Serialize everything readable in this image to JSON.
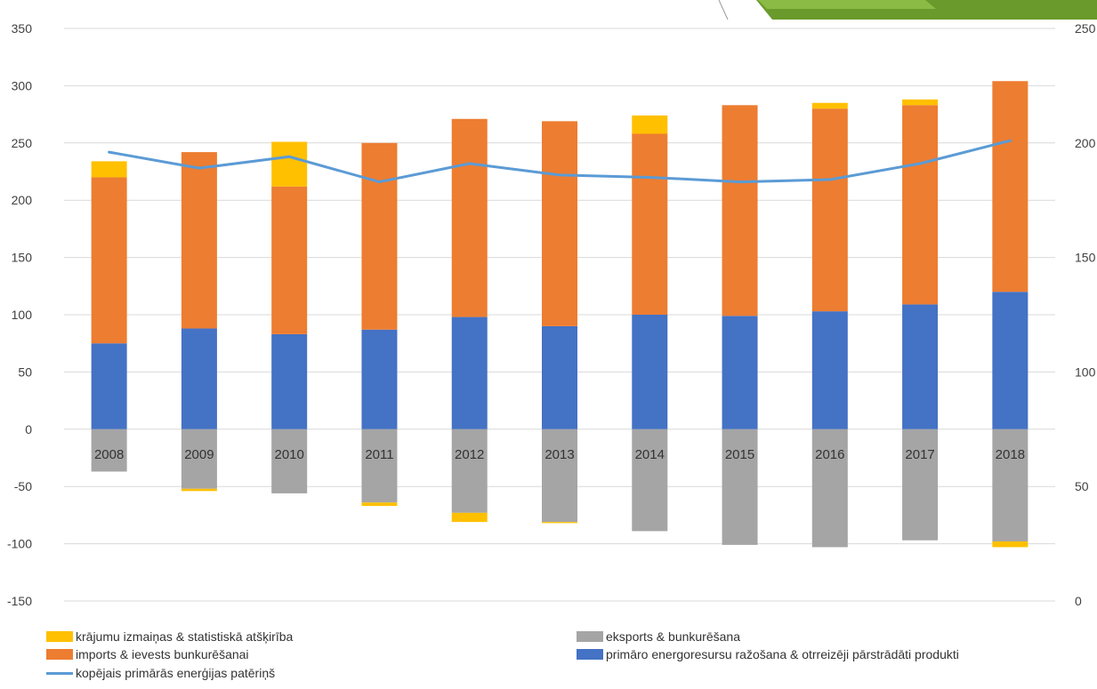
{
  "chart_data": {
    "type": "bar",
    "stacked": true,
    "categories": [
      "2008",
      "2009",
      "2010",
      "2011",
      "2012",
      "2013",
      "2014",
      "2015",
      "2016",
      "2017",
      "2018"
    ],
    "ylim_left": [
      -150,
      350
    ],
    "ylim_right": [
      0,
      250
    ],
    "y_ticks_left": [
      350,
      300,
      250,
      200,
      150,
      100,
      50,
      0,
      -50,
      -100,
      -150
    ],
    "y_tick_labels_left": [
      "350",
      "300",
      "250",
      "200",
      "150",
      "100",
      "50",
      "0",
      "-50",
      "-100",
      "-150"
    ],
    "y_ticks_right": [
      250,
      200,
      150,
      100,
      50,
      0
    ],
    "y_tick_labels_right": [
      "250",
      "200",
      "150",
      "100",
      "50",
      "0"
    ],
    "grid": true,
    "legend_position": "bottom",
    "series": [
      {
        "name": "primāro energoresursu ražošana & otrreizēji pārstrādāti produkti",
        "color": "#4472c4",
        "axis": "left",
        "values": [
          75,
          88,
          83,
          87,
          98,
          90,
          100,
          99,
          103,
          109,
          120
        ]
      },
      {
        "name": "imports & ievests bunkurēšanai",
        "color": "#ed7d31",
        "axis": "left",
        "values": [
          145,
          154,
          129,
          163,
          173,
          179,
          158,
          184,
          177,
          174,
          184
        ]
      },
      {
        "name": "krājumu izmaiņas & statistiskā atšķirība",
        "color": "#ffc000",
        "axis": "left",
        "values": [
          14,
          0,
          39,
          0,
          0,
          0,
          16,
          0,
          5,
          5,
          0
        ],
        "negative_values": [
          0,
          -2,
          0,
          -3,
          -8,
          -1,
          0,
          0,
          0,
          0,
          -5
        ]
      },
      {
        "name": "eksports & bunkurēšana",
        "color": "#a5a5a5",
        "axis": "left",
        "values": [
          -37,
          -52,
          -56,
          -64,
          -73,
          -81,
          -89,
          -101,
          -103,
          -97,
          -98
        ]
      },
      {
        "name": "kopējais primārās enerģijas patēriņš",
        "color": "#5b9bd5",
        "type": "line",
        "axis": "right",
        "values": [
          196,
          189,
          194,
          183,
          191,
          186,
          185,
          183,
          184,
          191,
          201
        ]
      }
    ]
  },
  "legend": {
    "stock": "krājumu izmaiņas & statistiskā atšķirība",
    "imports": "imports & ievests bunkurēšanai",
    "exports": "eksports & bunkurēšana",
    "primary": "primāro energoresursu ražošana & otrreizēji pārstrādāti produkti",
    "total": "kopējais primārās enerģijas patēriņš"
  }
}
